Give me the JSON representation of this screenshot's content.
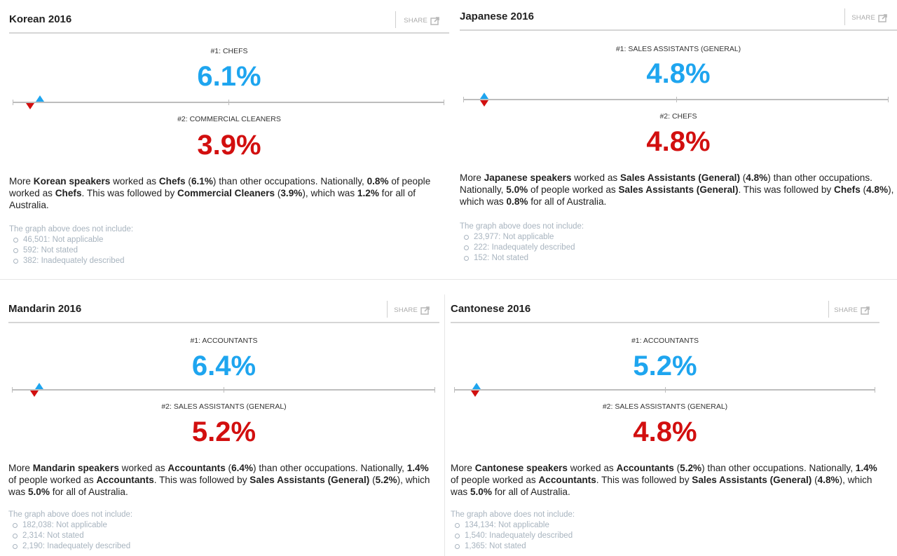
{
  "share_label": "SHARE",
  "panels": [
    {
      "title": "Korean 2016",
      "first_label": "#1: CHEFS",
      "first_value": "6.1%",
      "second_label": "#2: COMMERCIAL CLEANERS",
      "second_value": "3.9%",
      "first_pct": 6.1,
      "second_pct": 3.9,
      "summary": [
        {
          "t": "More ",
          "b": false
        },
        {
          "t": "Korean speakers",
          "b": true
        },
        {
          "t": " worked as ",
          "b": false
        },
        {
          "t": "Chefs",
          "b": true
        },
        {
          "t": " (",
          "b": false
        },
        {
          "t": "6.1%",
          "b": true
        },
        {
          "t": ") than other occupations. Nationally, ",
          "b": false
        },
        {
          "t": "0.8%",
          "b": true
        },
        {
          "t": " of people worked as ",
          "b": false
        },
        {
          "t": "Chefs",
          "b": true
        },
        {
          "t": ". This was followed by ",
          "b": false
        },
        {
          "t": "Commercial Cleaners",
          "b": true
        },
        {
          "t": " (",
          "b": false
        },
        {
          "t": "3.9%",
          "b": true
        },
        {
          "t": "), which was ",
          "b": false
        },
        {
          "t": "1.2%",
          "b": true
        },
        {
          "t": " for all of Australia.",
          "b": false
        }
      ],
      "excluded_title": "The graph above does not include:",
      "excluded": [
        "46,501: Not applicable",
        "592: Not stated",
        "382: Inadequately described"
      ]
    },
    {
      "title": "Japanese 2016",
      "first_label": "#1: SALES ASSISTANTS (GENERAL)",
      "first_value": "4.8%",
      "second_label": "#2: CHEFS",
      "second_value": "4.8%",
      "first_pct": 4.8,
      "second_pct": 4.8,
      "summary": [
        {
          "t": "More ",
          "b": false
        },
        {
          "t": "Japanese speakers",
          "b": true
        },
        {
          "t": " worked as ",
          "b": false
        },
        {
          "t": "Sales Assistants (General)",
          "b": true
        },
        {
          "t": " (",
          "b": false
        },
        {
          "t": "4.8%",
          "b": true
        },
        {
          "t": ") than other occupations. Nationally, ",
          "b": false
        },
        {
          "t": "5.0%",
          "b": true
        },
        {
          "t": " of people worked as ",
          "b": false
        },
        {
          "t": "Sales Assistants (General)",
          "b": true
        },
        {
          "t": ". This was followed by ",
          "b": false
        },
        {
          "t": "Chefs",
          "b": true
        },
        {
          "t": " (",
          "b": false
        },
        {
          "t": "4.8%",
          "b": true
        },
        {
          "t": "), which was ",
          "b": false
        },
        {
          "t": "0.8%",
          "b": true
        },
        {
          "t": " for all of Australia.",
          "b": false
        }
      ],
      "excluded_title": "The graph above does not include:",
      "excluded": [
        "23,977: Not applicable",
        "222: Inadequately described",
        "152: Not stated"
      ]
    },
    {
      "title": "Mandarin 2016",
      "first_label": "#1: ACCOUNTANTS",
      "first_value": "6.4%",
      "second_label": "#2: SALES ASSISTANTS (GENERAL)",
      "second_value": "5.2%",
      "first_pct": 6.4,
      "second_pct": 5.2,
      "summary": [
        {
          "t": "More ",
          "b": false
        },
        {
          "t": "Mandarin speakers",
          "b": true
        },
        {
          "t": " worked as ",
          "b": false
        },
        {
          "t": "Accountants",
          "b": true
        },
        {
          "t": " (",
          "b": false
        },
        {
          "t": "6.4%",
          "b": true
        },
        {
          "t": ") than other occupations. Nationally, ",
          "b": false
        },
        {
          "t": "1.4%",
          "b": true
        },
        {
          "t": " of people worked as ",
          "b": false
        },
        {
          "t": "Accountants",
          "b": true
        },
        {
          "t": ". This was followed by ",
          "b": false
        },
        {
          "t": "Sales Assistants (General)",
          "b": true
        },
        {
          "t": " (",
          "b": false
        },
        {
          "t": "5.2%",
          "b": true
        },
        {
          "t": "), which was ",
          "b": false
        },
        {
          "t": "5.0%",
          "b": true
        },
        {
          "t": " for all of Australia.",
          "b": false
        }
      ],
      "excluded_title": "The graph above does not include:",
      "excluded": [
        "182,038: Not applicable",
        "2,314: Not stated",
        "2,190: Inadequately described"
      ]
    },
    {
      "title": "Cantonese 2016",
      "first_label": "#1: ACCOUNTANTS",
      "first_value": "5.2%",
      "second_label": "#2: SALES ASSISTANTS (GENERAL)",
      "second_value": "4.8%",
      "first_pct": 5.2,
      "second_pct": 4.8,
      "summary": [
        {
          "t": "More ",
          "b": false
        },
        {
          "t": "Cantonese speakers",
          "b": true
        },
        {
          "t": " worked as ",
          "b": false
        },
        {
          "t": "Accountants",
          "b": true
        },
        {
          "t": " (",
          "b": false
        },
        {
          "t": "5.2%",
          "b": true
        },
        {
          "t": ") than other occupations. Nationally, ",
          "b": false
        },
        {
          "t": "1.4%",
          "b": true
        },
        {
          "t": " of people worked as ",
          "b": false
        },
        {
          "t": "Accountants",
          "b": true
        },
        {
          "t": ". This was followed by ",
          "b": false
        },
        {
          "t": "Sales Assistants (General)",
          "b": true
        },
        {
          "t": " (",
          "b": false
        },
        {
          "t": "4.8%",
          "b": true
        },
        {
          "t": "), which was ",
          "b": false
        },
        {
          "t": "5.0%",
          "b": true
        },
        {
          "t": " for all of Australia.",
          "b": false
        }
      ],
      "excluded_title": "The graph above does not include:",
      "excluded": [
        "134,134: Not applicable",
        "1,540: Inadequately described",
        "1,365: Not stated"
      ]
    }
  ],
  "colors": {
    "first": "#1ea5ef",
    "second": "#d20f0f"
  }
}
